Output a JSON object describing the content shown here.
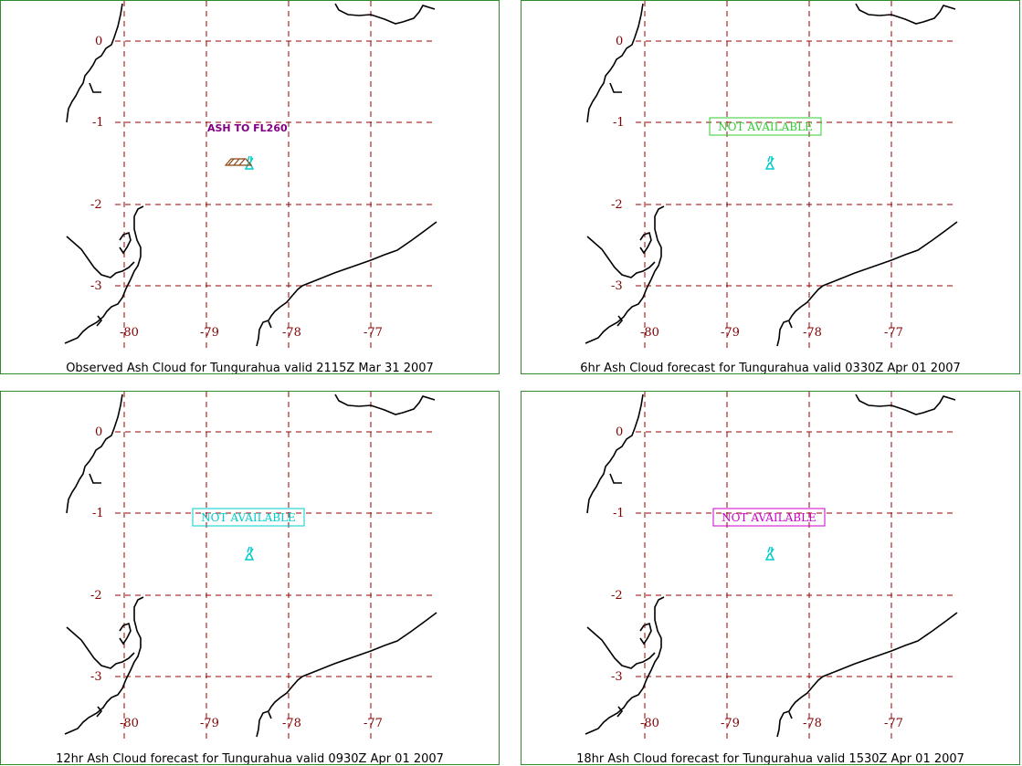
{
  "panels": [
    {
      "caption": "Observed Ash Cloud for Tungurahua valid 2115Z Mar 31 2007",
      "status_text": "",
      "status_color": "",
      "ash_label": "ASH TO FL260",
      "has_ash_polygon": true
    },
    {
      "caption": "6hr Ash Cloud forecast for Tungurahua valid 0330Z Apr 01 2007",
      "status_text": "NOT AVAILABLE",
      "status_color": "#33cc33",
      "ash_label": "",
      "has_ash_polygon": false
    },
    {
      "caption": "12hr Ash Cloud forecast for Tungurahua valid 0930Z Apr 01 2007",
      "status_text": "NOT AVAILABLE",
      "status_color": "#00cccc",
      "ash_label": "",
      "has_ash_polygon": false
    },
    {
      "caption": "18hr Ash Cloud forecast for Tungurahua valid 1530Z Apr 01 2007",
      "status_text": "NOT AVAILABLE",
      "status_color": "#cc00cc",
      "ash_label": "",
      "has_ash_polygon": false
    }
  ],
  "lat_labels": [
    "0",
    "-1",
    "-2",
    "-3"
  ],
  "lon_labels": [
    "-80",
    "-79",
    "-78",
    "-77"
  ],
  "colors": {
    "grid": "#990000",
    "coast": "#000000",
    "volcano": "#00cccc",
    "border": "#2e8b2e",
    "ash": "#8b4513"
  }
}
